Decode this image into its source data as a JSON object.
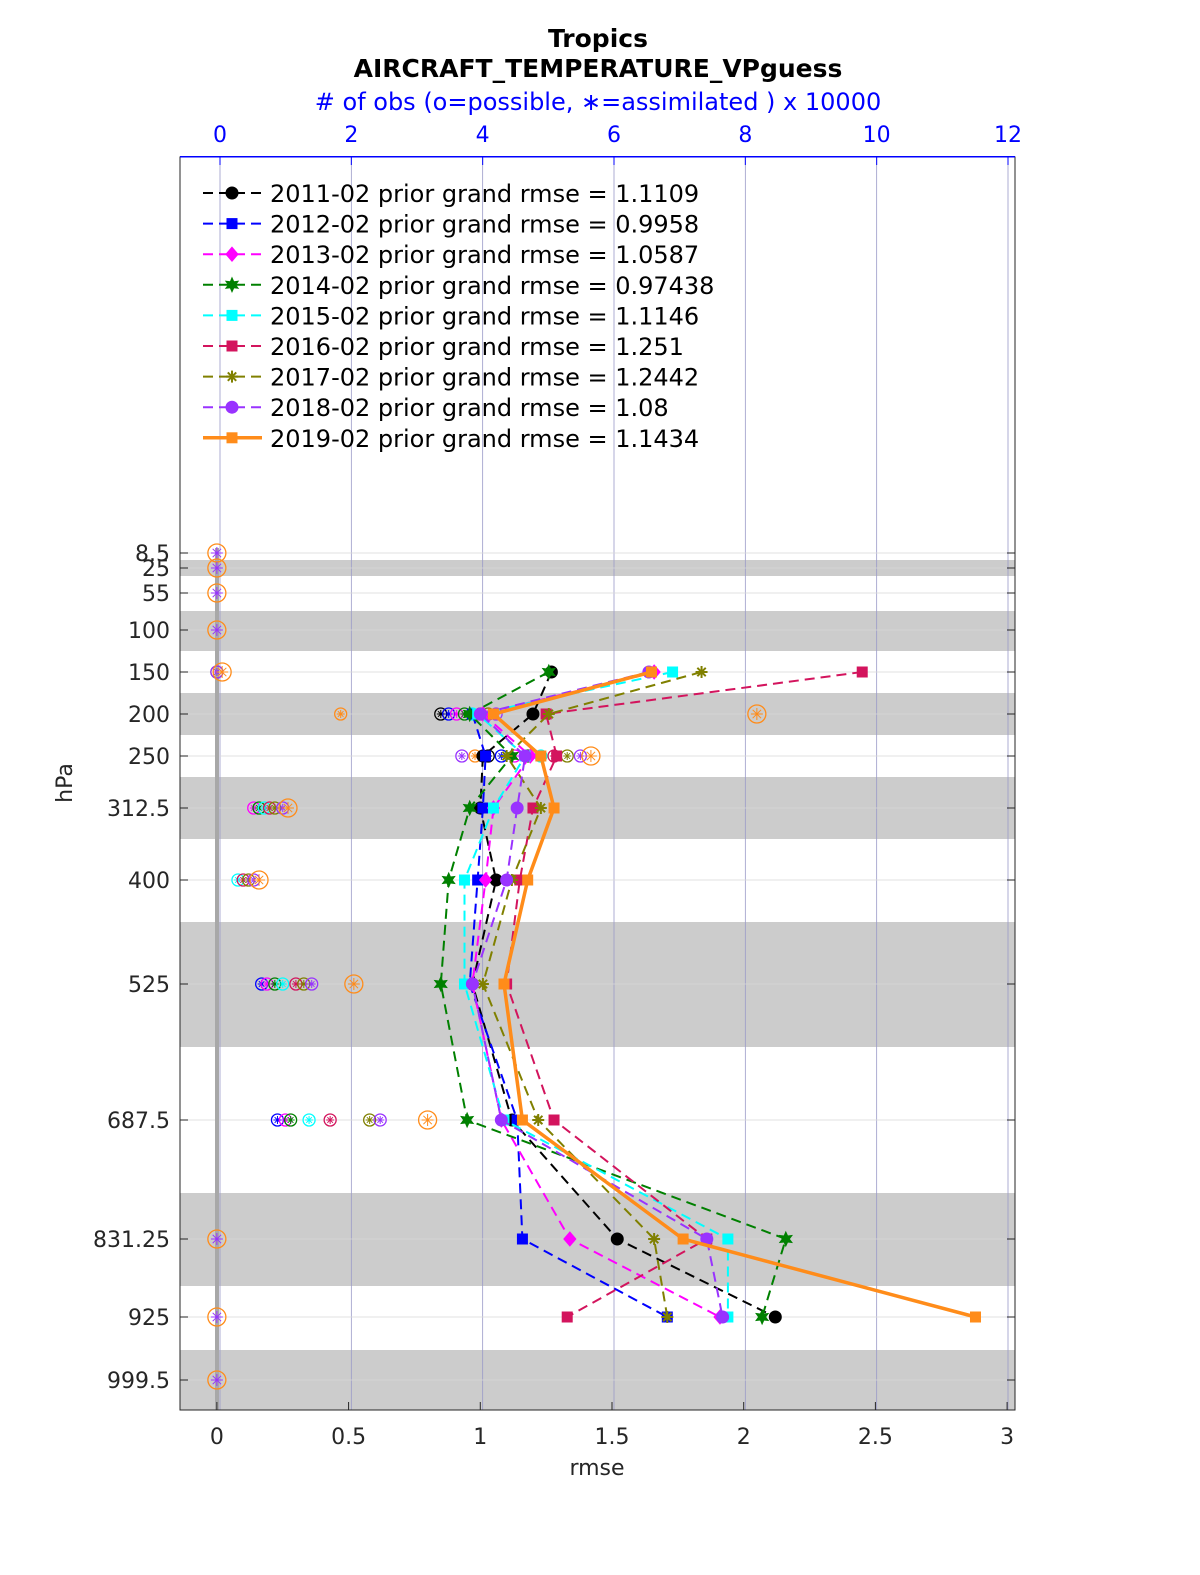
{
  "chart_data": {
    "type": "line",
    "title": "Tropics",
    "subtitle": "AIRCRAFT_TEMPERATURE_VPguess",
    "top_axis_label": "# of obs (o=possible, ∗=assimilated ) x 10000",
    "xlabel": "rmse",
    "ylabel": "hPa",
    "xlim": [
      -0.14,
      3.03
    ],
    "top_xlim": [
      0,
      12
    ],
    "x_ticks": [
      "0",
      "0.5",
      "1",
      "1.5",
      "2",
      "2.5",
      "3"
    ],
    "top_ticks": [
      "0",
      "2",
      "4",
      "6",
      "8",
      "10",
      "12"
    ],
    "levels": [
      8.5,
      25,
      55,
      100,
      150,
      200,
      250,
      312.5,
      400,
      525,
      687.5,
      831.25,
      925,
      999.5
    ],
    "level_labels": [
      "8.5",
      "25",
      "55",
      "100",
      "150",
      "200",
      "250",
      "312.5",
      "400",
      "525",
      "687.5",
      "831.25",
      "925",
      "999.5"
    ],
    "grid": true,
    "legend_position": "top-left",
    "series": [
      {
        "name": "2011-02 prior grand rmse = 1.1109",
        "color": "#000000",
        "marker": "circle",
        "line": "dashed",
        "levels": [
          150,
          200,
          250,
          312.5,
          400,
          525,
          687.5,
          831.25,
          925
        ],
        "values": [
          1.27,
          1.2,
          1.01,
          1.0,
          1.06,
          0.97,
          1.12,
          1.52,
          2.12
        ]
      },
      {
        "name": "2012-02 prior grand rmse = 0.9958",
        "color": "#0000ff",
        "marker": "square",
        "line": "dashed",
        "levels": [
          200,
          250,
          312.5,
          400,
          525,
          687.5,
          831.25,
          925
        ],
        "values": [
          0.97,
          1.02,
          1.01,
          0.99,
          0.96,
          1.14,
          1.16,
          1.71
        ]
      },
      {
        "name": "2013-02 prior grand rmse = 1.0587",
        "color": "#ff00ff",
        "marker": "diamond",
        "line": "dashed",
        "levels": [
          150,
          200,
          250,
          312.5,
          400,
          525,
          687.5,
          831.25,
          925
        ],
        "values": [
          1.66,
          1.01,
          1.19,
          1.05,
          1.02,
          0.97,
          1.08,
          1.34,
          1.91
        ]
      },
      {
        "name": "2014-02 prior grand rmse = 0.97438",
        "color": "#008000",
        "marker": "hexagram",
        "line": "dashed",
        "levels": [
          150,
          200,
          250,
          312.5,
          400,
          525,
          687.5,
          831.25,
          925
        ],
        "values": [
          1.26,
          0.96,
          1.12,
          0.96,
          0.88,
          0.85,
          0.95,
          2.16,
          2.07
        ]
      },
      {
        "name": "2015-02 prior grand rmse = 1.1146",
        "color": "#00ffff",
        "marker": "square",
        "line": "dashed",
        "levels": [
          150,
          200,
          250,
          312.5,
          400,
          525,
          687.5,
          831.25,
          925
        ],
        "values": [
          1.73,
          0.99,
          1.17,
          1.05,
          0.94,
          0.94,
          1.09,
          1.94,
          1.94
        ]
      },
      {
        "name": "2016-02 prior grand rmse = 1.251",
        "color": "#d3145d",
        "marker": "square",
        "line": "dashed",
        "levels": [
          150,
          200,
          250,
          312.5,
          400,
          525,
          687.5,
          831.25,
          925
        ],
        "values": [
          2.45,
          1.25,
          1.29,
          1.2,
          1.15,
          1.1,
          1.28,
          1.86,
          1.33
        ]
      },
      {
        "name": "2017-02 prior grand rmse = 1.2442",
        "color": "#808000",
        "marker": "asterisk",
        "line": "dashed",
        "levels": [
          150,
          200,
          250,
          312.5,
          400,
          525,
          687.5,
          831.25,
          925
        ],
        "values": [
          1.84,
          1.26,
          1.1,
          1.23,
          1.12,
          1.01,
          1.22,
          1.66,
          1.71
        ]
      },
      {
        "name": "2018-02 prior grand rmse = 1.08",
        "color": "#9933ff",
        "marker": "circle",
        "line": "dashed",
        "levels": [
          150,
          200,
          250,
          312.5,
          400,
          525,
          687.5,
          831.25,
          925
        ],
        "values": [
          1.64,
          1.0,
          1.17,
          1.14,
          1.1,
          0.97,
          1.08,
          1.86,
          1.92
        ]
      },
      {
        "name": "2019-02 prior grand rmse = 1.1434",
        "color": "#ff8c1a",
        "marker": "square",
        "line": "solid",
        "levels": [
          150,
          200,
          250,
          312.5,
          400,
          525,
          687.5,
          831.25,
          925
        ],
        "values": [
          1.65,
          1.05,
          1.23,
          1.28,
          1.18,
          1.09,
          1.16,
          1.77,
          2.88
        ]
      }
    ],
    "obs_counts": [
      {
        "level": 8.5,
        "possible": [
          0.0
        ],
        "assimilated": [
          0.0
        ]
      },
      {
        "level": 25,
        "possible": [
          0.0
        ],
        "assimilated": [
          0.0
        ]
      },
      {
        "level": 55,
        "possible": [
          0.0
        ],
        "assimilated": [
          0.0
        ]
      },
      {
        "level": 100,
        "possible": [
          0.0
        ],
        "assimilated": [
          0.0
        ]
      },
      {
        "level": 150,
        "possible": [
          0.0,
          0.0,
          0.02
        ],
        "assimilated": [
          0.0,
          0.0,
          0.02
        ]
      },
      {
        "level": 200,
        "possible": [
          0.47,
          0.85,
          0.88,
          0.91,
          0.94,
          0.97,
          1.0,
          1.03,
          1.06,
          2.05
        ],
        "assimilated": [
          0.47,
          0.85,
          0.88,
          0.91,
          0.94,
          0.97,
          1.0,
          1.03,
          1.06,
          2.05
        ]
      },
      {
        "level": 250,
        "possible": [
          0.93,
          0.98,
          1.03,
          1.08,
          1.13,
          1.18,
          1.23,
          1.28,
          1.33,
          1.38,
          1.42
        ],
        "assimilated": [
          0.93,
          0.98,
          1.03,
          1.08,
          1.13,
          1.18,
          1.23,
          1.28,
          1.33,
          1.38,
          1.42
        ]
      },
      {
        "level": 312.5,
        "possible": [
          0.14,
          0.16,
          0.18,
          0.2,
          0.22,
          0.25,
          0.27
        ],
        "assimilated": [
          0.14,
          0.16,
          0.18,
          0.2,
          0.22,
          0.25,
          0.27
        ]
      },
      {
        "level": 400,
        "possible": [
          0.08,
          0.1,
          0.12,
          0.14,
          0.16
        ],
        "assimilated": [
          0.08,
          0.1,
          0.12,
          0.14,
          0.16
        ]
      },
      {
        "level": 525,
        "possible": [
          0.17,
          0.19,
          0.22,
          0.25,
          0.3,
          0.33,
          0.36,
          0.52
        ],
        "assimilated": [
          0.17,
          0.19,
          0.22,
          0.25,
          0.3,
          0.33,
          0.36,
          0.52
        ]
      },
      {
        "level": 687.5,
        "possible": [
          0.23,
          0.26,
          0.28,
          0.35,
          0.43,
          0.58,
          0.62,
          0.8
        ],
        "assimilated": [
          0.23,
          0.26,
          0.28,
          0.35,
          0.43,
          0.58,
          0.62,
          0.8
        ]
      },
      {
        "level": 831.25,
        "possible": [
          0.0
        ],
        "assimilated": [
          0.0
        ]
      },
      {
        "level": 925,
        "possible": [
          0.0
        ],
        "assimilated": [
          0.0
        ]
      },
      {
        "level": 999.5,
        "possible": [
          0.0
        ],
        "assimilated": [
          0.0
        ]
      }
    ]
  }
}
